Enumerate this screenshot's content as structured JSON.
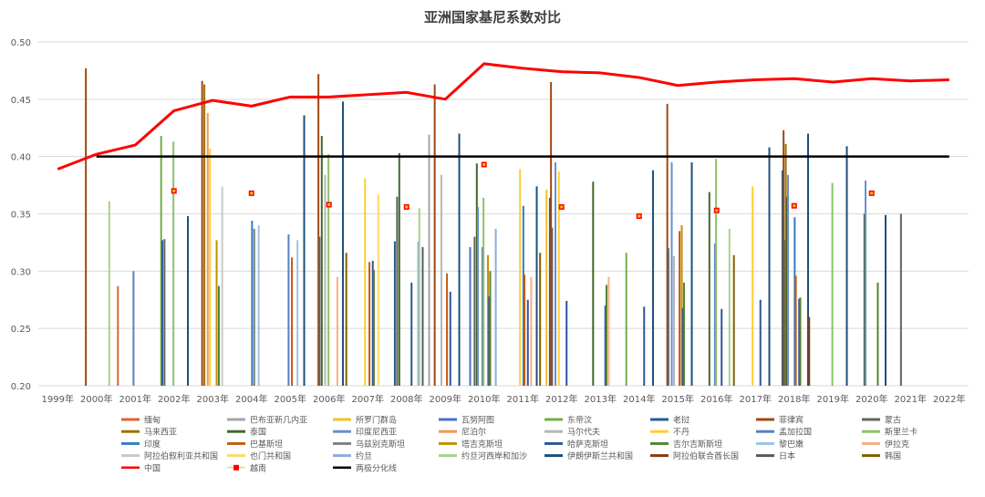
{
  "chart_data": {
    "type": "bar",
    "title": "亚洲国家基尼系数对比",
    "xlabel": "",
    "ylabel": "",
    "ylim": [
      0.2,
      0.5
    ],
    "yticks": [
      "0.20",
      "0.25",
      "0.30",
      "0.35",
      "0.40",
      "0.45",
      "0.50"
    ],
    "categories": [
      "1999年",
      "2000年",
      "2001年",
      "2002年",
      "2003年",
      "2004年",
      "2005年",
      "2006年",
      "2007年",
      "2008年",
      "2009年",
      "2010年",
      "2011年",
      "2012年",
      "2013年",
      "2014年",
      "2015年",
      "2016年",
      "2017年",
      "2018年",
      "2019年",
      "2020年",
      "2021年",
      "2022年"
    ],
    "grid": "horizontal",
    "legend_position": "bottom",
    "bar_series": [
      {
        "name": "缅甸",
        "color": "#e0622f",
        "values": [
          null,
          null,
          0.287,
          null,
          null,
          null,
          null,
          null,
          null,
          null,
          null,
          null,
          null,
          null,
          null,
          null,
          null,
          null,
          null,
          null,
          null,
          null,
          null,
          null
        ]
      },
      {
        "name": "巴布亚新几内亚",
        "color": "#a5a5a5",
        "values": [
          null,
          null,
          null,
          null,
          null,
          null,
          null,
          null,
          null,
          null,
          0.419,
          null,
          null,
          null,
          null,
          null,
          null,
          null,
          null,
          null,
          null,
          null,
          null,
          null
        ]
      },
      {
        "name": "所罗门群岛",
        "color": "#f2c12e",
        "values": [
          null,
          null,
          null,
          null,
          null,
          null,
          null,
          null,
          null,
          null,
          null,
          null,
          null,
          0.371,
          null,
          null,
          null,
          null,
          null,
          null,
          null,
          null,
          null,
          null
        ]
      },
      {
        "name": "瓦努阿图",
        "color": "#4472c4",
        "values": [
          null,
          null,
          null,
          null,
          null,
          null,
          null,
          null,
          null,
          null,
          null,
          0.321,
          null,
          null,
          null,
          null,
          null,
          null,
          null,
          null,
          null,
          null,
          null,
          null
        ]
      },
      {
        "name": "东帝汶",
        "color": "#70ad47",
        "values": [
          null,
          null,
          null,
          0.418,
          null,
          null,
          null,
          null,
          null,
          null,
          null,
          null,
          null,
          null,
          null,
          0.316,
          null,
          null,
          null,
          null,
          null,
          null,
          null,
          null
        ]
      },
      {
        "name": "老挝",
        "color": "#255e91",
        "values": [
          null,
          null,
          null,
          0.327,
          null,
          null,
          null,
          null,
          null,
          0.326,
          null,
          null,
          null,
          0.364,
          null,
          null,
          null,
          null,
          null,
          0.388,
          null,
          null,
          null,
          null
        ]
      },
      {
        "name": "菲律宾",
        "color": "#9e480e",
        "values": [
          null,
          0.477,
          null,
          null,
          0.466,
          null,
          null,
          0.472,
          null,
          null,
          0.463,
          null,
          null,
          0.465,
          null,
          null,
          0.446,
          null,
          null,
          0.423,
          null,
          null,
          null,
          null
        ]
      },
      {
        "name": "蒙古",
        "color": "#636363",
        "values": [
          null,
          null,
          null,
          0.328,
          null,
          null,
          null,
          0.33,
          null,
          0.365,
          null,
          0.33,
          null,
          0.338,
          null,
          null,
          0.32,
          null,
          null,
          0.327,
          null,
          null,
          0.35,
          null
        ]
      },
      {
        "name": "马来西亚",
        "color": "#997300",
        "values": [
          null,
          null,
          null,
          null,
          0.463,
          null,
          null,
          null,
          null,
          null,
          null,
          null,
          null,
          null,
          null,
          null,
          null,
          null,
          null,
          0.411,
          null,
          null,
          null,
          null
        ]
      },
      {
        "name": "泰国",
        "color": "#43682b",
        "values": [
          null,
          null,
          null,
          null,
          null,
          null,
          null,
          0.418,
          null,
          0.403,
          null,
          0.394,
          null,
          null,
          0.378,
          null,
          null,
          0.369,
          null,
          0.365,
          null,
          0.35,
          null,
          null
        ]
      },
      {
        "name": "印度尼西亚",
        "color": "#698ed0",
        "values": [
          null,
          null,
          null,
          null,
          null,
          null,
          null,
          null,
          null,
          null,
          null,
          0.356,
          null,
          0.395,
          null,
          null,
          0.395,
          null,
          null,
          0.384,
          null,
          0.379,
          null,
          null
        ]
      },
      {
        "name": "尼泊尔",
        "color": "#f1975a",
        "values": [
          null,
          null,
          null,
          null,
          0.438,
          null,
          null,
          null,
          null,
          null,
          null,
          null,
          null,
          null,
          null,
          null,
          null,
          null,
          null,
          null,
          null,
          null,
          null,
          null
        ]
      },
      {
        "name": "马尔代夫",
        "color": "#b7b7b7",
        "values": [
          null,
          null,
          null,
          null,
          null,
          null,
          null,
          0.384,
          null,
          null,
          0.384,
          null,
          null,
          null,
          null,
          null,
          0.313,
          null,
          null,
          null,
          null,
          null,
          null,
          null
        ]
      },
      {
        "name": "不丹",
        "color": "#ffcd33",
        "values": [
          null,
          null,
          null,
          null,
          0.407,
          null,
          null,
          null,
          0.381,
          null,
          null,
          null,
          0.389,
          0.387,
          null,
          null,
          null,
          null,
          0.374,
          null,
          null,
          null,
          null,
          null
        ]
      },
      {
        "name": "孟加拉国",
        "color": "#5b7fbf",
        "values": [
          null,
          null,
          0.3,
          null,
          null,
          null,
          0.332,
          null,
          null,
          null,
          null,
          0.321,
          null,
          null,
          null,
          null,
          null,
          0.324,
          null,
          null,
          null,
          null,
          null,
          null
        ]
      },
      {
        "name": "斯里兰卡",
        "color": "#8cc168",
        "values": [
          null,
          null,
          null,
          0.413,
          null,
          null,
          null,
          0.402,
          null,
          null,
          null,
          0.364,
          null,
          null,
          null,
          null,
          null,
          0.398,
          null,
          null,
          0.377,
          null,
          null,
          null
        ]
      },
      {
        "name": "印度",
        "color": "#327dc2",
        "values": [
          null,
          null,
          null,
          null,
          null,
          0.344,
          null,
          null,
          null,
          null,
          null,
          null,
          0.357,
          null,
          null,
          null,
          null,
          null,
          null,
          0.347,
          null,
          null,
          null,
          null
        ]
      },
      {
        "name": "巴基斯坦",
        "color": "#c55a11",
        "values": [
          null,
          null,
          null,
          null,
          null,
          null,
          0.312,
          null,
          0.308,
          null,
          0.298,
          null,
          0.297,
          null,
          null,
          null,
          0.335,
          null,
          null,
          0.296,
          null,
          null,
          null,
          null
        ]
      },
      {
        "name": "乌兹别克斯坦",
        "color": "#7f7f7f",
        "values": [
          null,
          null,
          null,
          null,
          null,
          0.337,
          null,
          null,
          null,
          null,
          null,
          null,
          null,
          null,
          null,
          null,
          null,
          null,
          null,
          null,
          null,
          null,
          null,
          null
        ]
      },
      {
        "name": "塔吉克斯坦",
        "color": "#c09100",
        "values": [
          null,
          null,
          null,
          null,
          0.327,
          null,
          null,
          null,
          null,
          null,
          null,
          0.314,
          null,
          null,
          null,
          null,
          0.34,
          null,
          null,
          null,
          null,
          null,
          null,
          null
        ]
      },
      {
        "name": "哈萨克斯坦",
        "color": "#2f5597",
        "values": [
          null,
          null,
          null,
          null,
          null,
          null,
          null,
          null,
          0.309,
          0.29,
          0.282,
          0.278,
          0.275,
          0.274,
          0.27,
          0.269,
          0.268,
          0.267,
          0.275,
          0.276,
          null,
          null,
          null,
          null
        ]
      },
      {
        "name": "吉尔吉斯斯坦",
        "color": "#548235",
        "values": [
          null,
          null,
          null,
          null,
          0.287,
          null,
          null,
          null,
          0.301,
          null,
          null,
          0.3,
          null,
          null,
          0.288,
          null,
          0.29,
          null,
          null,
          0.277,
          null,
          0.29,
          null,
          null
        ]
      },
      {
        "name": "黎巴嫩",
        "color": "#9dc3e6",
        "values": [
          null,
          null,
          null,
          null,
          null,
          0.34,
          0.327,
          null,
          null,
          null,
          null,
          null,
          null,
          null,
          null,
          null,
          null,
          null,
          null,
          null,
          null,
          null,
          null,
          null
        ]
      },
      {
        "name": "伊拉克",
        "color": "#f4b183",
        "values": [
          null,
          null,
          null,
          null,
          null,
          null,
          null,
          0.295,
          null,
          null,
          null,
          null,
          0.295,
          null,
          0.295,
          null,
          null,
          null,
          null,
          null,
          null,
          null,
          null,
          null
        ]
      },
      {
        "name": "阿拉伯叙利亚共和国",
        "color": "#c9c9c9",
        "values": [
          null,
          null,
          null,
          null,
          0.374,
          null,
          null,
          null,
          null,
          null,
          null,
          null,
          null,
          null,
          null,
          null,
          null,
          null,
          null,
          null,
          null,
          null,
          null,
          null
        ]
      },
      {
        "name": "也门共和国",
        "color": "#ffd966",
        "values": [
          null,
          null,
          null,
          null,
          null,
          null,
          null,
          null,
          0.367,
          null,
          null,
          null,
          null,
          null,
          null,
          null,
          null,
          null,
          null,
          null,
          null,
          null,
          null,
          null
        ]
      },
      {
        "name": "约旦",
        "color": "#8faadc",
        "values": [
          null,
          null,
          null,
          null,
          null,
          null,
          null,
          null,
          null,
          0.326,
          null,
          0.337,
          null,
          null,
          null,
          null,
          null,
          null,
          null,
          null,
          null,
          null,
          null,
          null
        ]
      },
      {
        "name": "约旦河西岸和加沙",
        "color": "#a9d18e",
        "values": [
          null,
          0.361,
          null,
          null,
          null,
          null,
          null,
          null,
          null,
          0.355,
          null,
          null,
          null,
          null,
          null,
          null,
          null,
          0.337,
          null,
          null,
          null,
          null,
          null,
          null
        ]
      },
      {
        "name": "伊朗伊斯兰共和国",
        "color": "#1f4e79",
        "values": [
          null,
          null,
          null,
          0.348,
          null,
          null,
          0.436,
          0.448,
          null,
          null,
          0.42,
          null,
          0.374,
          null,
          null,
          0.388,
          0.395,
          null,
          0.408,
          0.42,
          0.409,
          0.349,
          null,
          null
        ]
      },
      {
        "name": "阿拉伯联合酋长国",
        "color": "#843c0c",
        "values": [
          null,
          null,
          null,
          null,
          null,
          null,
          null,
          null,
          null,
          null,
          null,
          null,
          null,
          null,
          null,
          null,
          null,
          null,
          null,
          0.26,
          null,
          null,
          null,
          null
        ]
      },
      {
        "name": "日本",
        "color": "#595959",
        "values": [
          null,
          null,
          null,
          null,
          null,
          null,
          null,
          null,
          null,
          0.321,
          null,
          null,
          null,
          null,
          null,
          null,
          null,
          null,
          null,
          null,
          null,
          null,
          null,
          null
        ]
      },
      {
        "name": "韩国",
        "color": "#7f6000",
        "values": [
          null,
          null,
          null,
          null,
          null,
          null,
          null,
          0.316,
          null,
          null,
          null,
          null,
          0.316,
          null,
          null,
          null,
          null,
          0.314,
          null,
          null,
          null,
          null,
          null,
          null
        ]
      }
    ],
    "line_series": [
      {
        "name": "中国",
        "color": "#ff0000",
        "style": "line",
        "values": [
          0.389,
          0.402,
          0.41,
          0.44,
          0.449,
          0.444,
          0.452,
          0.452,
          0.454,
          0.456,
          0.45,
          0.481,
          0.477,
          0.474,
          0.473,
          0.469,
          0.462,
          0.465,
          0.467,
          0.468,
          0.465,
          0.468,
          0.466,
          0.467
        ]
      },
      {
        "name": "越南",
        "color": "#ff0000",
        "style": "marker",
        "values": [
          null,
          null,
          null,
          0.37,
          null,
          0.368,
          null,
          0.358,
          null,
          0.356,
          null,
          0.393,
          null,
          0.356,
          null,
          0.348,
          null,
          0.353,
          null,
          0.357,
          null,
          0.368,
          null,
          null
        ]
      },
      {
        "name": "两极分化线",
        "color": "#000000",
        "style": "line",
        "values": [
          null,
          0.4,
          0.4,
          0.4,
          0.4,
          0.4,
          0.4,
          0.4,
          0.4,
          0.4,
          0.4,
          0.4,
          0.4,
          0.4,
          0.4,
          0.4,
          0.4,
          0.4,
          0.4,
          0.4,
          0.4,
          0.4,
          0.4,
          0.4
        ]
      }
    ]
  }
}
